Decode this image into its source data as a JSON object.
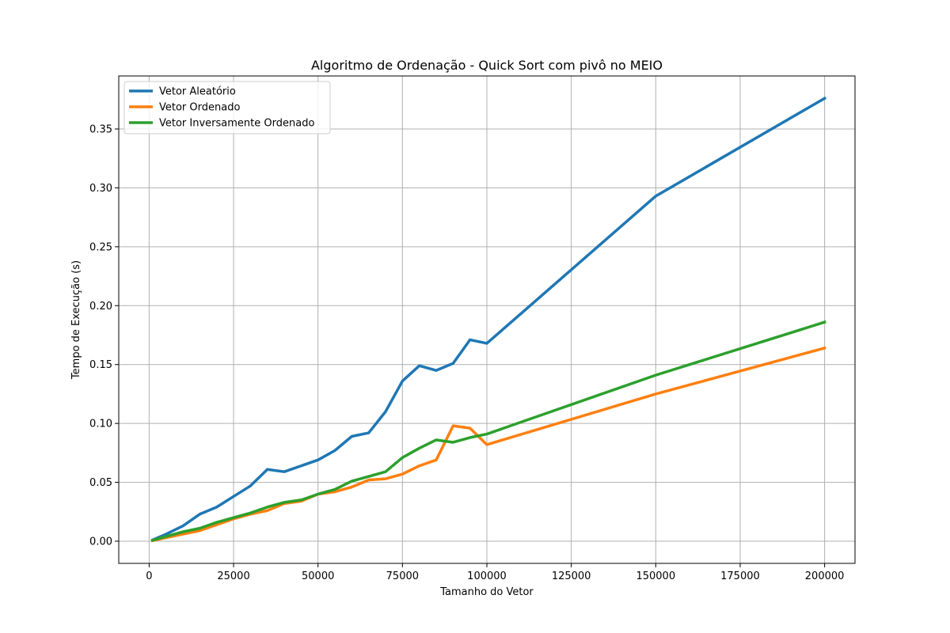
{
  "chart_data": {
    "type": "line",
    "title": "Algoritmo de Ordenação - Quick Sort com pivô no MEIO",
    "xlabel": "Tamanho do Vetor",
    "ylabel": "Tempo de Execução (s)",
    "xlim": [
      -9000,
      209000
    ],
    "ylim": [
      -0.0188,
      0.395
    ],
    "xticks": [
      0,
      25000,
      50000,
      75000,
      100000,
      125000,
      150000,
      175000,
      200000
    ],
    "yticks": [
      0.0,
      0.05,
      0.1,
      0.15,
      0.2,
      0.25,
      0.3,
      0.35
    ],
    "ytick_labels": [
      "0.00",
      "0.05",
      "0.10",
      "0.15",
      "0.20",
      "0.25",
      "0.30",
      "0.35"
    ],
    "grid": true,
    "legend_position": "top-left",
    "x": [
      1000,
      5000,
      10000,
      15000,
      20000,
      25000,
      30000,
      35000,
      40000,
      45000,
      50000,
      55000,
      60000,
      65000,
      70000,
      75000,
      80000,
      85000,
      90000,
      95000,
      100000,
      150000,
      200000
    ],
    "series": [
      {
        "name": "Vetor Aleatório",
        "color": "#1f77b4",
        "values": [
          0.001,
          0.006,
          0.013,
          0.023,
          0.029,
          0.038,
          0.047,
          0.061,
          0.059,
          0.064,
          0.069,
          0.077,
          0.089,
          0.092,
          0.11,
          0.136,
          0.149,
          0.145,
          0.151,
          0.171,
          0.168,
          0.293,
          0.376
        ]
      },
      {
        "name": "Vetor Ordenado",
        "color": "#ff7f0e",
        "values": [
          0.0005,
          0.003,
          0.006,
          0.009,
          0.014,
          0.019,
          0.023,
          0.026,
          0.032,
          0.034,
          0.04,
          0.042,
          0.046,
          0.052,
          0.053,
          0.057,
          0.064,
          0.069,
          0.098,
          0.096,
          0.082,
          0.125,
          0.164
        ]
      },
      {
        "name": "Vetor Inversamente Ordenado",
        "color": "#2ca02c",
        "values": [
          0.0008,
          0.004,
          0.008,
          0.011,
          0.016,
          0.02,
          0.024,
          0.029,
          0.033,
          0.035,
          0.04,
          0.044,
          0.051,
          0.055,
          0.059,
          0.071,
          0.079,
          0.086,
          0.084,
          0.088,
          0.091,
          0.141,
          0.186
        ]
      }
    ]
  }
}
